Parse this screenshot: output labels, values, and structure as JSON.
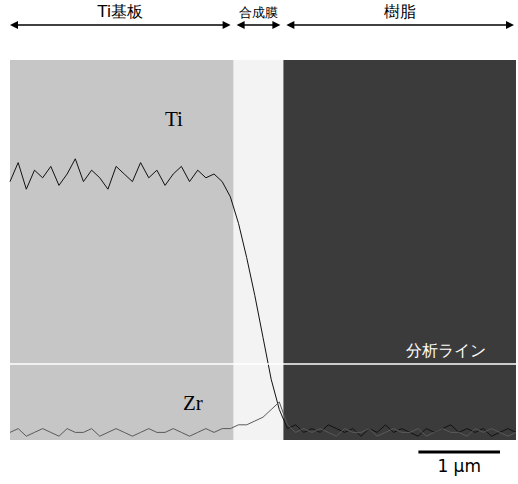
{
  "chart_data": {
    "type": "line",
    "x": [
      0,
      0.1,
      0.2,
      0.3,
      0.4,
      0.5,
      0.6,
      0.7,
      0.8,
      0.9,
      1.0,
      1.1,
      1.2,
      1.3,
      1.4,
      1.5,
      1.6,
      1.7,
      1.8,
      1.9,
      2.0,
      2.1,
      2.2,
      2.3,
      2.4,
      2.5,
      2.6,
      2.7,
      2.8,
      2.9,
      3.0,
      3.1,
      3.2,
      3.3,
      3.4,
      3.5,
      3.6,
      3.7,
      3.8,
      3.9,
      4.0,
      4.1,
      4.2,
      4.3,
      4.4,
      4.5,
      4.6,
      4.7,
      4.8,
      4.9,
      5.0,
      5.1,
      5.2,
      5.3,
      5.4,
      5.5,
      5.6,
      5.7,
      5.8,
      5.9,
      6.0,
      6.1,
      6.2
    ],
    "series": [
      {
        "name": "Ti",
        "color": "#111111",
        "values": [
          68,
          73,
          66,
          71,
          69,
          72,
          67,
          70,
          74,
          68,
          71,
          69,
          66,
          72,
          70,
          68,
          73,
          69,
          71,
          67,
          70,
          72,
          68,
          71,
          69,
          70,
          68,
          64,
          57,
          48,
          38,
          27,
          16,
          8,
          3,
          4,
          2,
          3,
          2,
          4,
          3,
          2,
          3,
          1,
          3,
          2,
          4,
          2,
          3,
          2,
          1,
          3,
          2,
          3,
          4,
          2,
          3,
          2,
          3,
          1,
          2,
          3,
          2
        ]
      },
      {
        "name": "Zr",
        "color": "#5a5a5a",
        "values": [
          2,
          3,
          1,
          2,
          3,
          2,
          1,
          3,
          2,
          2,
          3,
          1,
          2,
          3,
          2,
          1,
          2,
          3,
          2,
          2,
          3,
          2,
          1,
          2,
          3,
          2,
          3,
          3,
          4,
          4,
          5,
          6,
          8,
          10,
          4,
          2,
          3,
          2,
          3,
          2,
          1,
          3,
          2,
          2,
          3,
          1,
          2,
          3,
          2,
          2,
          3,
          1,
          2,
          3,
          2,
          2,
          1,
          3,
          2,
          3,
          2,
          1,
          2
        ]
      }
    ],
    "xlim": [
      0,
      6.2
    ],
    "ylim": [
      0,
      100
    ],
    "tick_labels": false,
    "grid": false,
    "regions": [
      {
        "label": "Ti基板",
        "from": 0,
        "to": 2.74,
        "color": "#c6c6c6"
      },
      {
        "label": "合成膜",
        "from": 2.74,
        "to": 3.35,
        "color": "#f3f3f3"
      },
      {
        "label": "樹脂",
        "from": 3.35,
        "to": 6.2,
        "color": "#3b3b3b"
      }
    ],
    "annotations": [
      {
        "text": "分析ライン",
        "y": 20
      }
    ],
    "scale_bar": {
      "label": "1 µm",
      "length": 1
    }
  }
}
